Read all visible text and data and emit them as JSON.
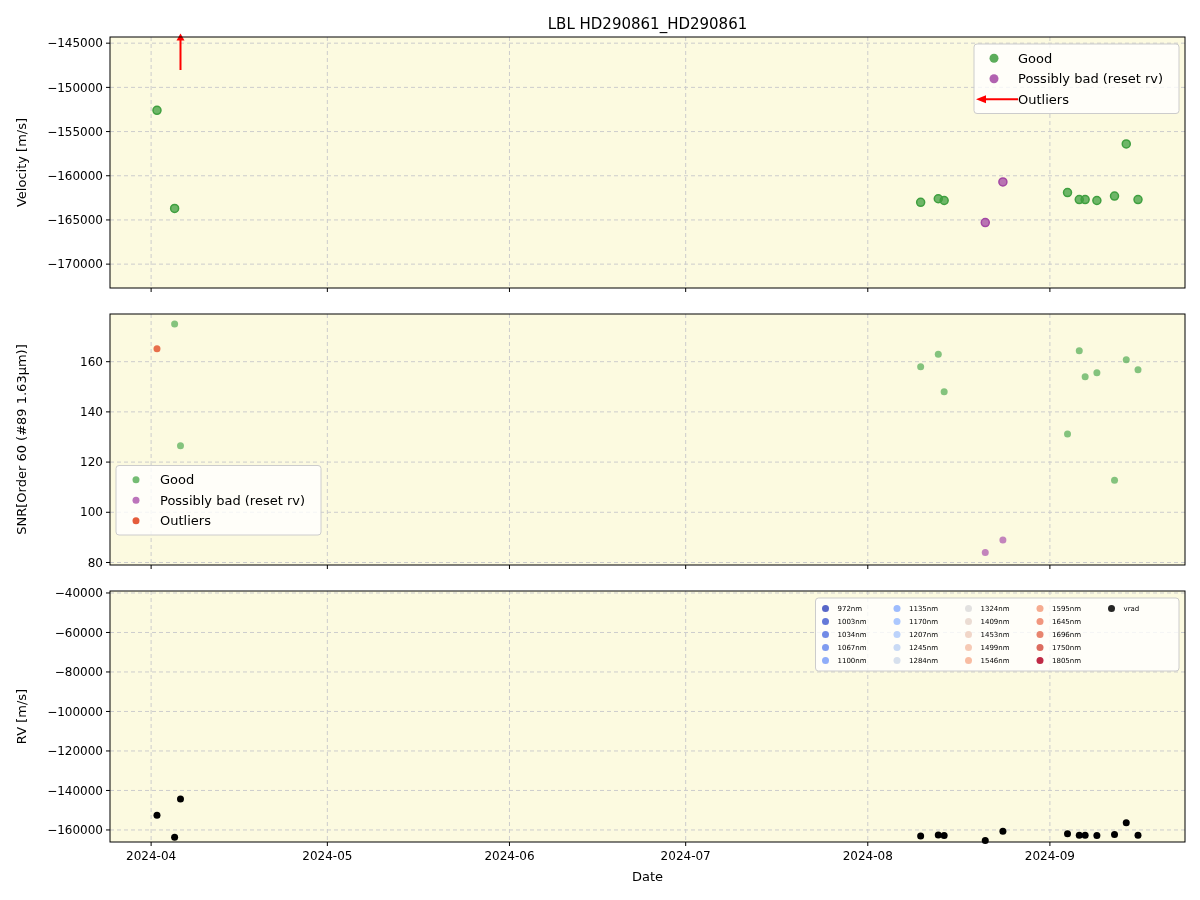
{
  "chart_data": [
    {
      "type": "scatter",
      "title": "LBL HD290861_HD290861",
      "ylabel": "Velocity [m/s]",
      "xlim": [
        "2024-03-25",
        "2024-09-24"
      ],
      "xticks": [
        {
          "value": "2024-04-01",
          "label": null
        },
        {
          "value": "2024-05-01",
          "label": null
        },
        {
          "value": "2024-06-01",
          "label": null
        },
        {
          "value": "2024-07-01",
          "label": null
        },
        {
          "value": "2024-08-01",
          "label": null
        },
        {
          "value": "2024-09-01",
          "label": null
        }
      ],
      "ylim": [
        -172700,
        -144300
      ],
      "yticks": [
        -145000,
        -150000,
        -155000,
        -160000,
        -165000,
        -170000
      ],
      "grid": true,
      "legend": "top right",
      "tick_labels": "y",
      "marker": "circle",
      "series": [
        {
          "name": "Good",
          "color": "#3f9f3f",
          "x": [
            "2024-04-02",
            "2024-04-05",
            "2024-08-10",
            "2024-08-13",
            "2024-08-14",
            "2024-09-04",
            "2024-09-06",
            "2024-09-07",
            "2024-09-09",
            "2024-09-12",
            "2024-09-14",
            "2024-09-16"
          ],
          "values": [
            -152600,
            -163700,
            -163000,
            -162600,
            -162800,
            -161900,
            -162700,
            -162700,
            -162800,
            -162300,
            -156400,
            -162700
          ]
        },
        {
          "name": "Possibly bad (reset rv)",
          "color": "#a347a3",
          "x": [
            "2024-08-21",
            "2024-08-24"
          ],
          "values": [
            -165300,
            -160700
          ]
        },
        {
          "name": "Outliers",
          "color": "#ff0000",
          "marker": "triangle",
          "x": [
            "2024-04-06"
          ],
          "values": [
            -144300
          ]
        }
      ]
    },
    {
      "type": "scatter",
      "ylabel": "SNR[Order 60 (#89 1.63μm)]",
      "xlim": [
        "2024-03-25",
        "2024-09-24"
      ],
      "xticks": [
        {
          "value": "2024-04-01",
          "label": null
        },
        {
          "value": "2024-05-01",
          "label": null
        },
        {
          "value": "2024-06-01",
          "label": null
        },
        {
          "value": "2024-07-01",
          "label": null
        },
        {
          "value": "2024-08-01",
          "label": null
        },
        {
          "value": "2024-09-01",
          "label": null
        }
      ],
      "ylim": [
        79,
        179
      ],
      "yticks": [
        80,
        100,
        120,
        140,
        160
      ],
      "grid": true,
      "legend": "bottom left",
      "tick_labels": "y",
      "marker": "circle",
      "series": [
        {
          "name": "Good",
          "color": "#5cb05c",
          "x": [
            "2024-04-05",
            "2024-04-06",
            "2024-08-10",
            "2024-08-13",
            "2024-08-14",
            "2024-09-04",
            "2024-09-06",
            "2024-09-07",
            "2024-09-09",
            "2024-09-12",
            "2024-09-14",
            "2024-09-16"
          ],
          "values": [
            175,
            126.5,
            158,
            163,
            148,
            131.2,
            164.4,
            154,
            155.6,
            112.8,
            160.8,
            156.8
          ]
        },
        {
          "name": "Possibly bad (reset rv)",
          "color": "#b05cb0",
          "x": [
            "2024-08-21",
            "2024-08-24"
          ],
          "values": [
            84,
            89
          ]
        },
        {
          "name": "Outliers",
          "color": "#e0401a",
          "x": [
            "2024-04-02"
          ],
          "values": [
            165.2
          ]
        }
      ]
    },
    {
      "type": "scatter",
      "xlabel": "Date",
      "ylabel": "RV [m/s]",
      "xlim": [
        "2024-03-25",
        "2024-09-24"
      ],
      "xticks": [
        {
          "value": "2024-04-01",
          "label": "2024-04"
        },
        {
          "value": "2024-05-01",
          "label": "2024-05"
        },
        {
          "value": "2024-06-01",
          "label": "2024-06"
        },
        {
          "value": "2024-07-01",
          "label": "2024-07"
        },
        {
          "value": "2024-08-01",
          "label": "2024-08"
        },
        {
          "value": "2024-09-01",
          "label": "2024-09"
        }
      ],
      "ylim": [
        -166100,
        -39000
      ],
      "yticks": [
        -40000,
        -60000,
        -80000,
        -100000,
        -120000,
        -140000,
        -160000
      ],
      "grid": true,
      "legend": "top right",
      "marker": "circle",
      "series": [
        {
          "name": "972nm",
          "color": "#3b4cc0"
        },
        {
          "name": "1003nm",
          "color": "#4961d2"
        },
        {
          "name": "1034nm",
          "color": "#5977e3"
        },
        {
          "name": "1067nm",
          "color": "#6a8bef"
        },
        {
          "name": "1100nm",
          "color": "#7b9ff9"
        },
        {
          "name": "1135nm",
          "color": "#8db0fe"
        },
        {
          "name": "1170nm",
          "color": "#9ebeff"
        },
        {
          "name": "1207nm",
          "color": "#b0cbfc"
        },
        {
          "name": "1245nm",
          "color": "#c0d4f5"
        },
        {
          "name": "1284nm",
          "color": "#d0dbeb"
        },
        {
          "name": "1324nm",
          "color": "#dddcdc"
        },
        {
          "name": "1409nm",
          "color": "#e8d6cc"
        },
        {
          "name": "1453nm",
          "color": "#efcfbf"
        },
        {
          "name": "1499nm",
          "color": "#f5c1a9"
        },
        {
          "name": "1546nm",
          "color": "#f7b093"
        },
        {
          "name": "1595nm",
          "color": "#f59d7e"
        },
        {
          "name": "1645nm",
          "color": "#ee8468"
        },
        {
          "name": "1696nm",
          "color": "#e46e56"
        },
        {
          "name": "1750nm",
          "color": "#d65244"
        },
        {
          "name": "1805nm",
          "color": "#b40426"
        },
        {
          "name": "vrad",
          "color": "#000000",
          "x": [
            "2024-04-02",
            "2024-04-05",
            "2024-04-06",
            "2024-08-10",
            "2024-08-13",
            "2024-08-14",
            "2024-08-21",
            "2024-08-24",
            "2024-09-04",
            "2024-09-06",
            "2024-09-07",
            "2024-09-09",
            "2024-09-12",
            "2024-09-14",
            "2024-09-16"
          ],
          "values": [
            -152600,
            -163700,
            -144300,
            -163000,
            -162600,
            -162800,
            -165300,
            -160700,
            -161900,
            -162700,
            -162700,
            -162800,
            -162300,
            -156400,
            -162700
          ]
        }
      ]
    }
  ]
}
